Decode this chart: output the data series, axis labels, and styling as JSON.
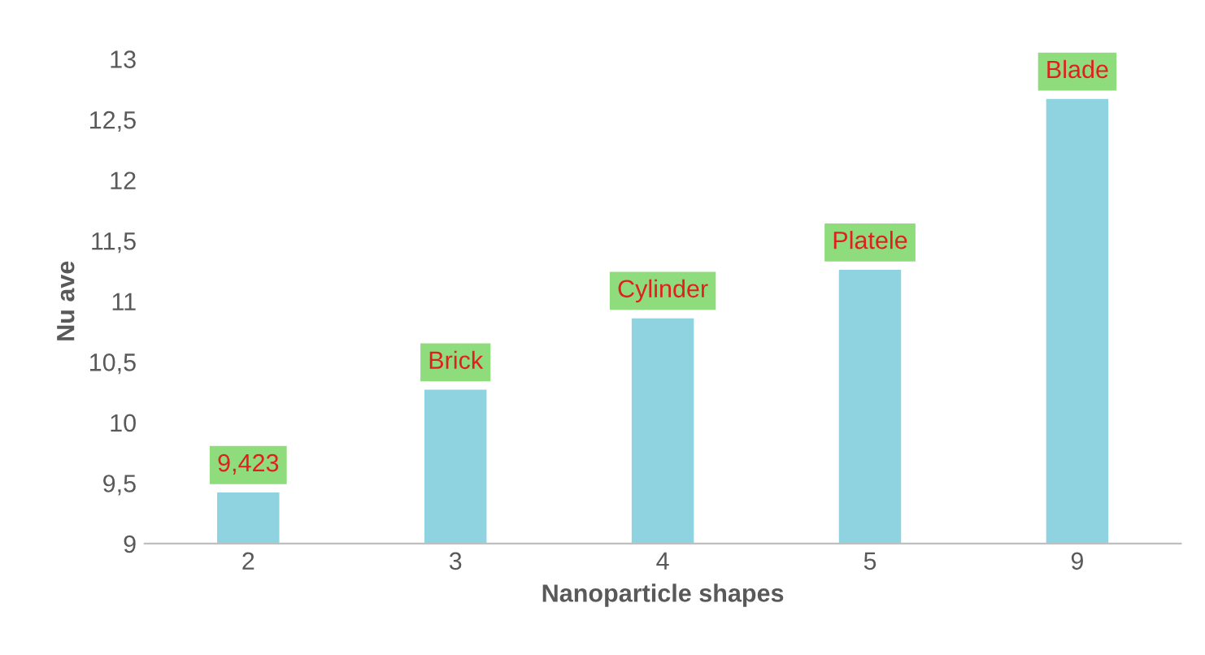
{
  "chart_data": {
    "type": "bar",
    "xlabel": "Nanoparticle shapes",
    "ylabel": "Nu ave",
    "categories": [
      "2",
      "3",
      "4",
      "5",
      "9"
    ],
    "values": [
      9.423,
      10.27,
      10.86,
      11.26,
      12.67
    ],
    "color": "#8fd3e0",
    "ylim": [
      9,
      13
    ],
    "yticks": [
      9,
      {
        "value": 9.5,
        "label": "9,5"
      },
      10,
      {
        "value": 10.5,
        "label": "10,5"
      },
      11,
      {
        "value": 11.5,
        "label": "11,5"
      },
      12,
      {
        "value": 12.5,
        "label": "12,5"
      },
      13
    ],
    "grid": false,
    "annotations": [
      {
        "text": "9,423",
        "x": "2",
        "y": 9.423
      },
      {
        "text": "Brick",
        "x": "3",
        "y": 10.27
      },
      {
        "text": "Cylinder",
        "x": "4",
        "y": 10.86
      },
      {
        "text": "Platele",
        "x": "5",
        "y": 11.26
      },
      {
        "text": "Blade",
        "x": "9",
        "y": 12.67
      }
    ]
  }
}
